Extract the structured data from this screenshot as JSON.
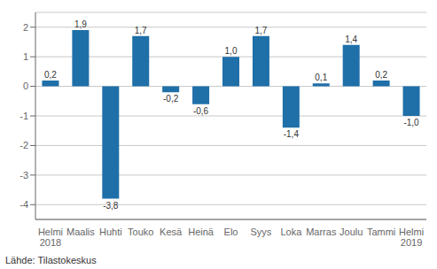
{
  "chart_data": {
    "type": "bar",
    "categories": [
      "Helmi\n2018",
      "Maalis",
      "Huhti",
      "Touko",
      "Kesä",
      "Heinä",
      "Elo",
      "Syys",
      "Loka",
      "Marras",
      "Joulu",
      "Tammi",
      "Helmi\n2019"
    ],
    "values": [
      0.2,
      1.9,
      -3.8,
      1.7,
      -0.2,
      -0.6,
      1.0,
      1.7,
      -1.4,
      0.1,
      1.4,
      0.2,
      -1.0
    ],
    "value_labels": [
      "0,2",
      "1,9",
      "-3,8",
      "1,7",
      "-0,2",
      "-0,6",
      "1,0",
      "1,7",
      "-1,4",
      "0,1",
      "1,4",
      "0,2",
      "-1,0"
    ],
    "data_labels": true,
    "color": "#1f6fa8",
    "ylim": [
      -4.5,
      2.5
    ],
    "yticks": [
      -4,
      -3,
      -2,
      -1,
      0,
      1,
      2
    ],
    "grid": true,
    "annotations": [
      "Lähde: Tilastokeskus"
    ]
  }
}
